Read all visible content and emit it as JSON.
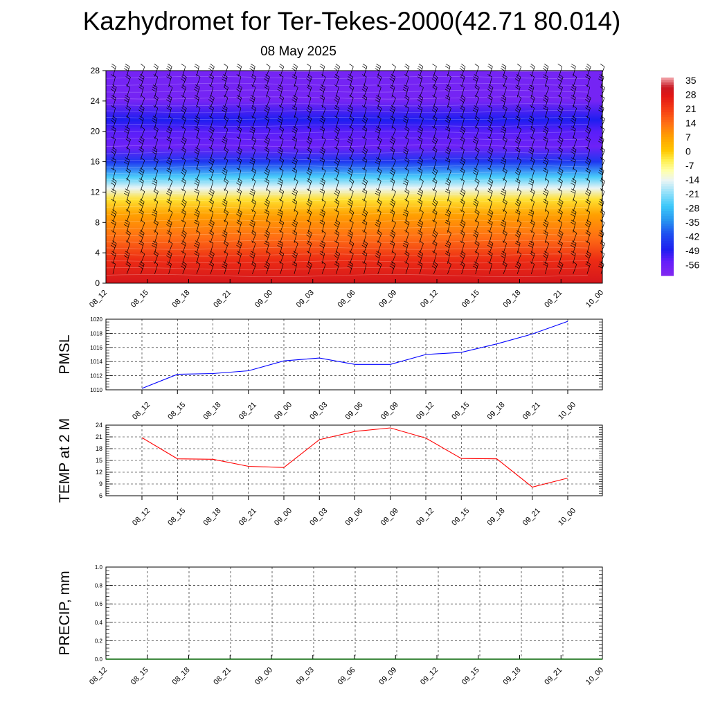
{
  "title": "Kazhydromet for Ter-Tekes-2000(42.71 80.014)",
  "subtitle": "08 May 2025",
  "chart_data": [
    {
      "type": "heatmap",
      "name": "cross-section",
      "x_categories": [
        "08_12",
        "08_15",
        "08_18",
        "08_21",
        "09_00",
        "09_03",
        "09_06",
        "09_09",
        "09_12",
        "09_15",
        "09_18",
        "09_21",
        "10_00"
      ],
      "y_ticks": [
        0,
        4,
        8,
        12,
        16,
        20,
        24,
        28
      ],
      "ylim": [
        0,
        28
      ],
      "colorbar_labels": [
        "35",
        "28",
        "21",
        "14",
        "7",
        "0",
        "-7",
        "-14",
        "-21",
        "-28",
        "-35",
        "-42",
        "-49",
        "-56"
      ],
      "colorbar_range": [
        -63,
        37
      ],
      "profile_by_height": [
        {
          "y": 0,
          "value": 30
        },
        {
          "y": 3,
          "value": 24
        },
        {
          "y": 6,
          "value": 14
        },
        {
          "y": 9,
          "value": 7
        },
        {
          "y": 11,
          "value": -3
        },
        {
          "y": 12.5,
          "value": -15
        },
        {
          "y": 14,
          "value": -27
        },
        {
          "y": 16,
          "value": -46
        },
        {
          "y": 18,
          "value": -58
        },
        {
          "y": 20,
          "value": -55
        },
        {
          "y": 21.5,
          "value": -50
        },
        {
          "y": 24,
          "value": -60
        },
        {
          "y": 28,
          "value": -60
        }
      ],
      "wind_barbs": true
    },
    {
      "type": "line",
      "ylabel": "PMSL",
      "categories": [
        "08_12",
        "08_15",
        "08_18",
        "08_21",
        "09_00",
        "09_03",
        "09_06",
        "09_09",
        "09_12",
        "09_15",
        "09_18",
        "09_21",
        "10_00"
      ],
      "y_ticks": [
        1010,
        1012,
        1014,
        1016,
        1018,
        1020
      ],
      "ylim": [
        1010,
        1020
      ],
      "values": [
        1010.2,
        1012.2,
        1012.3,
        1012.7,
        1014.1,
        1014.5,
        1013.6,
        1013.6,
        1015.0,
        1015.3,
        1016.5,
        1017.9,
        1019.7
      ],
      "color": "#0000ff",
      "grid": true
    },
    {
      "type": "line",
      "ylabel": "TEMP at 2 M",
      "categories": [
        "08_12",
        "08_15",
        "08_18",
        "08_21",
        "09_00",
        "09_03",
        "09_06",
        "09_09",
        "09_12",
        "09_15",
        "09_18",
        "09_21",
        "10_00"
      ],
      "y_ticks": [
        6,
        9,
        12,
        15,
        18,
        21,
        24
      ],
      "ylim": [
        6,
        24
      ],
      "values": [
        20.8,
        15.4,
        15.3,
        13.5,
        13.2,
        20.3,
        22.4,
        23.3,
        20.7,
        15.5,
        15.4,
        8.2,
        10.5
      ],
      "color": "#ff0000",
      "grid": true
    },
    {
      "type": "line",
      "ylabel": "PRECIP, mm",
      "categories": [
        "08_12",
        "08_15",
        "08_18",
        "08_21",
        "09_00",
        "09_03",
        "09_06",
        "09_09",
        "09_12",
        "09_15",
        "09_18",
        "09_21",
        "10_00"
      ],
      "y_ticks": [
        "0.0",
        "0.2",
        "0.4",
        "0.6",
        "0.8",
        "1.0"
      ],
      "ylim": [
        0,
        1
      ],
      "values": [
        0,
        0,
        0,
        0,
        0,
        0,
        0,
        0,
        0,
        0,
        0,
        0,
        0
      ],
      "color": "#006400",
      "grid": true
    }
  ],
  "colors": {
    "pmsl_line": "#0000ff",
    "temp_line": "#ff0000",
    "precip_line": "#006400",
    "barb": "#000000"
  }
}
